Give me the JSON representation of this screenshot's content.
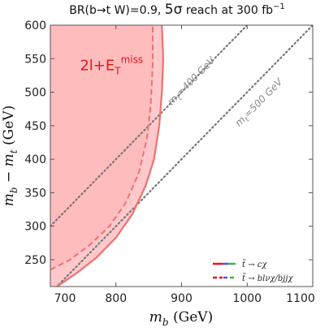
{
  "chart_data": {
    "type": "line",
    "title": {
      "prefix": "BR(",
      "b": "b",
      "arrow": "→",
      "t": "t",
      "mid": " W)=0.9, ",
      "big": "5σ",
      "rest": " reach at 300 fb",
      "sup": "−1"
    },
    "xlabel": {
      "m": "m",
      "sub": "b",
      "unit": " (GeV)"
    },
    "ylabel": {
      "m1": "m",
      "sub1": "b",
      "minus": " − ",
      "m2": "m",
      "sub2": "t",
      "unit": " (GeV)"
    },
    "xlim": [
      700,
      1100
    ],
    "ylim": [
      210,
      600
    ],
    "x_ticks": [
      700,
      800,
      900,
      1000,
      1100
    ],
    "y_ticks": [
      250,
      300,
      350,
      400,
      450,
      500,
      550,
      600
    ],
    "grid": false,
    "region_label": {
      "base": "2l+E",
      "sub": "T",
      "sup": "miss",
      "x": 745,
      "y": 533
    },
    "mass_lines": [
      {
        "label": "m",
        "sub": "t",
        "value": "=400 GeV",
        "mt": 400,
        "label_x": 885,
        "label_y": 480
      },
      {
        "label": "m",
        "sub": "t",
        "value": "=500 GeV",
        "mt": 500,
        "label_x": 988,
        "label_y": 448
      }
    ],
    "series": [
      {
        "name": "t̃ → cχ",
        "style": "solid",
        "colors": [
          "#e8141c",
          "#5a4fe0",
          "#3cb44b"
        ],
        "x": [
          710,
          740,
          770,
          800,
          825,
          845,
          858,
          866,
          870,
          872,
          870
        ],
        "y": [
          210,
          230,
          253,
          283,
          318,
          360,
          400,
          450,
          500,
          550,
          600
        ]
      },
      {
        "name": "t̃ → blνχ/bjjχ",
        "style": "dashed",
        "colors": [
          "#e8141c",
          "#5a4fe0",
          "#3cb44b"
        ],
        "x": [
          700,
          730,
          760,
          790,
          815,
          835,
          847,
          853,
          856,
          856
        ],
        "y": [
          235,
          250,
          272,
          300,
          335,
          380,
          430,
          480,
          540,
          600
        ]
      }
    ],
    "fill_colors": {
      "outer": "#ffc9cb",
      "inner": "#ffb0b3",
      "line": "#f07070"
    },
    "legend": {
      "position": "bottom-right"
    }
  }
}
